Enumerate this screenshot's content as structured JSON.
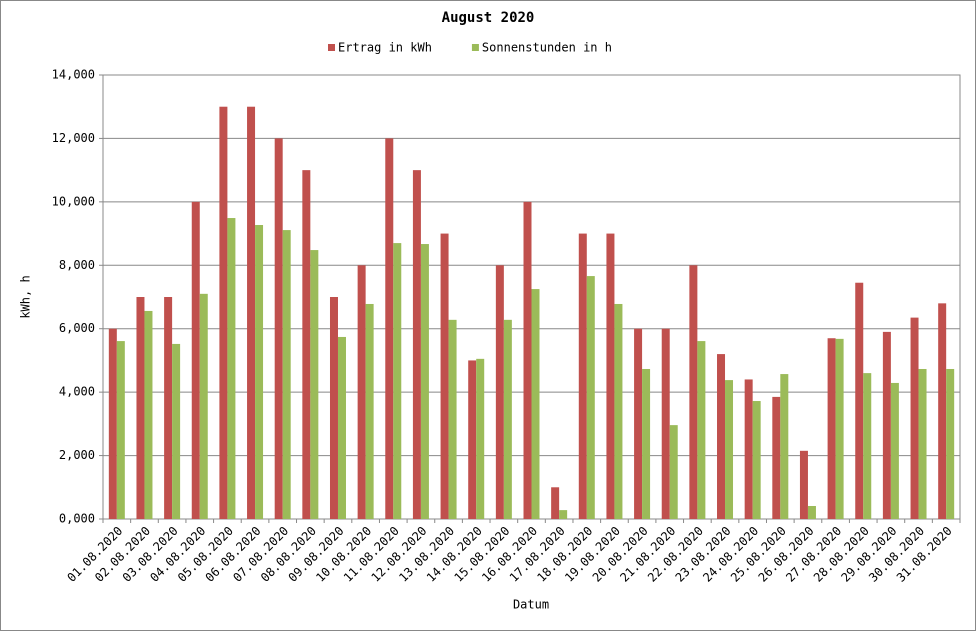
{
  "chart_data": {
    "type": "bar",
    "title": "August 2020",
    "x_label": "Datum",
    "y_label": "kWh, h",
    "legend": "top",
    "grid": true,
    "categories": [
      "01.08.2020",
      "02.08.2020",
      "03.08.2020",
      "04.08.2020",
      "05.08.2020",
      "06.08.2020",
      "07.08.2020",
      "08.08.2020",
      "09.08.2020",
      "10.08.2020",
      "11.08.2020",
      "12.08.2020",
      "13.08.2020",
      "14.08.2020",
      "15.08.2020",
      "16.08.2020",
      "17.08.2020",
      "18.08.2020",
      "19.08.2020",
      "20.08.2020",
      "21.08.2020",
      "22.08.2020",
      "23.08.2020",
      "24.08.2020",
      "25.08.2020",
      "26.08.2020",
      "27.08.2020",
      "28.08.2020",
      "29.08.2020",
      "30.08.2020",
      "31.08.2020"
    ],
    "series": [
      {
        "name": "Ertrag in kWh",
        "color": "#c0504d",
        "values": [
          6,
          7,
          7,
          10,
          13,
          13,
          12,
          11,
          7,
          8,
          12,
          11,
          9,
          5,
          8,
          10,
          1,
          9,
          9,
          6,
          6,
          8,
          5.2,
          4.4,
          3.85,
          2.15,
          5.7,
          7.45,
          5.9,
          6.35,
          6.8
        ]
      },
      {
        "name": "Sonnenstunden in h",
        "color": "#9bbb59",
        "values": [
          5.61,
          6.56,
          5.52,
          7.1,
          9.49,
          9.27,
          9.11,
          8.48,
          5.74,
          6.78,
          8.7,
          8.67,
          6.28,
          5.05,
          6.28,
          7.25,
          0.28,
          7.66,
          6.78,
          4.73,
          2.96,
          5.61,
          4.38,
          3.72,
          4.57,
          0.41,
          5.68,
          4.6,
          4.29,
          4.73,
          4.73
        ]
      }
    ],
    "ylim": [
      0,
      14
    ],
    "yticks": [
      {
        "value": 0,
        "label": "0,000"
      },
      {
        "value": 2,
        "label": "2,000"
      },
      {
        "value": 4,
        "label": "4,000"
      },
      {
        "value": 6,
        "label": "6,000"
      },
      {
        "value": 8,
        "label": "8,000"
      },
      {
        "value": 10,
        "label": "10,000"
      },
      {
        "value": 12,
        "label": "12,000"
      },
      {
        "value": 14,
        "label": "14,000"
      }
    ]
  }
}
